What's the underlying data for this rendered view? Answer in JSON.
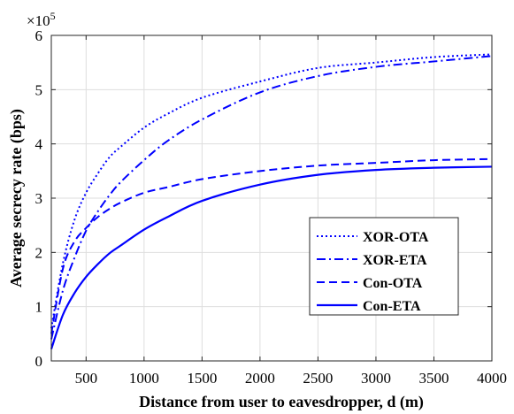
{
  "chart_data": {
    "type": "line",
    "xlabel": "Distance from user to eavesdropper, d (m)",
    "ylabel": "Average secrecy rate (bps)",
    "y_multiplier": {
      "base": "×10",
      "exponent": "5"
    },
    "xlim": [
      200,
      4000
    ],
    "ylim": [
      0,
      6
    ],
    "xticks": [
      500,
      1000,
      1500,
      2000,
      2500,
      3000,
      3500,
      4000
    ],
    "yticks": [
      0,
      1,
      2,
      3,
      4,
      5,
      6
    ],
    "grid": true,
    "legend_position": "lower-right",
    "line_color": "#0000FF",
    "series": [
      {
        "name": "XOR-OTA",
        "style": "dotted",
        "x": [
          200,
          300,
          400,
          500,
          600,
          700,
          800,
          1000,
          1200,
          1500,
          2000,
          2500,
          3000,
          3500,
          4000
        ],
        "y": [
          0.6,
          1.8,
          2.6,
          3.1,
          3.45,
          3.75,
          3.95,
          4.3,
          4.55,
          4.85,
          5.15,
          5.4,
          5.5,
          5.6,
          5.65
        ]
      },
      {
        "name": "XOR-ETA",
        "style": "dashdot",
        "x": [
          200,
          300,
          400,
          500,
          600,
          700,
          800,
          1000,
          1200,
          1500,
          2000,
          2500,
          3000,
          3500,
          4000
        ],
        "y": [
          0.4,
          1.3,
          1.9,
          2.4,
          2.75,
          3.05,
          3.3,
          3.7,
          4.05,
          4.45,
          4.95,
          5.25,
          5.42,
          5.52,
          5.62
        ]
      },
      {
        "name": "Con-OTA",
        "style": "dashed",
        "x": [
          200,
          300,
          400,
          500,
          600,
          700,
          800,
          1000,
          1200,
          1500,
          2000,
          2500,
          3000,
          3500,
          4000
        ],
        "y": [
          0.5,
          1.7,
          2.2,
          2.45,
          2.65,
          2.8,
          2.92,
          3.1,
          3.2,
          3.35,
          3.5,
          3.6,
          3.65,
          3.7,
          3.72
        ]
      },
      {
        "name": "Con-ETA",
        "style": "solid",
        "x": [
          200,
          300,
          400,
          500,
          600,
          700,
          800,
          1000,
          1200,
          1500,
          2000,
          2500,
          3000,
          3500,
          4000
        ],
        "y": [
          0.22,
          0.85,
          1.25,
          1.55,
          1.78,
          1.98,
          2.13,
          2.42,
          2.65,
          2.95,
          3.25,
          3.43,
          3.52,
          3.56,
          3.58
        ]
      }
    ]
  }
}
